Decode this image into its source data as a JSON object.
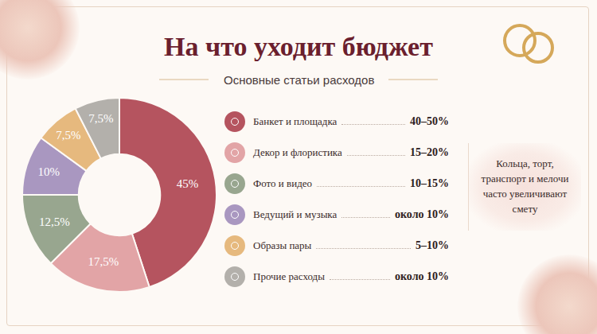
{
  "chart_data": {
    "type": "pie",
    "title": "На что уходит бюджет",
    "subtitle": "Основные статьи расходов",
    "categories": [
      "Банкет и площадка",
      "Декор и флористика",
      "Фото и видео",
      "Ведущий и музыка",
      "Образы пары",
      "Прочие расходы"
    ],
    "values": [
      45,
      17.5,
      12.5,
      10,
      7.5,
      7.5
    ],
    "value_labels": [
      "45%",
      "17,5%",
      "12,5%",
      "10%",
      "7,5%",
      "7,5%"
    ],
    "colors": [
      "#b5545f",
      "#e2a4a6",
      "#98a68f",
      "#a997c0",
      "#e6b97e",
      "#b3b0ab"
    ],
    "data_labels": true
  },
  "cost_ranges": [
    "40–50%",
    "15–20%",
    "10–15%",
    "около 10%",
    "5–10%",
    "около 10%"
  ],
  "note": "Кольца, торт, транспорт и мелочи часто увеличивают смету"
}
